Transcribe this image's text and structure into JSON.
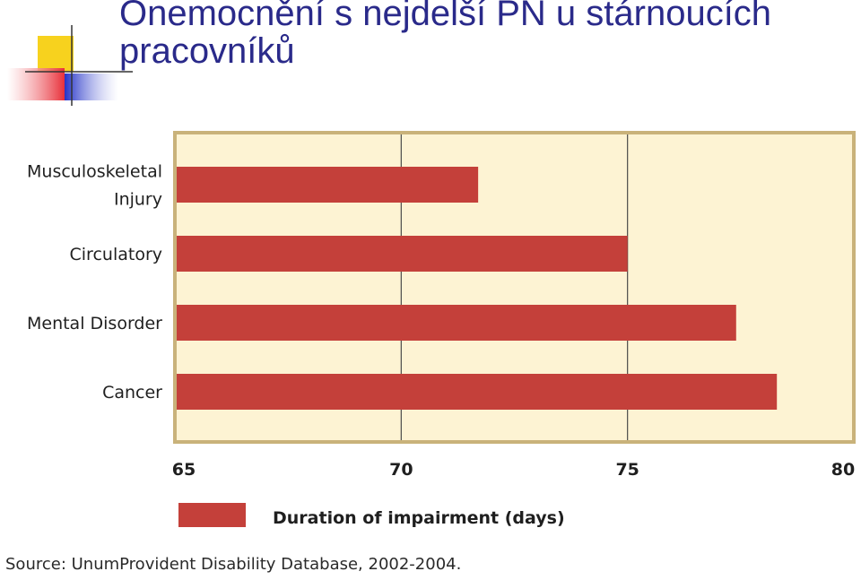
{
  "slide": {
    "title": "Onemocnění s nejdelší PN u stárnoucích pracovníků"
  },
  "colors": {
    "title": "#2a2a8a",
    "bar": "#c4403a",
    "plot_background": "#fdf3d3",
    "plot_border": "#c9b27a",
    "gridline": "#4a4a4a",
    "logo_yellow": "#f7d21e",
    "logo_red": "#e8303a",
    "logo_blue": "#2432c8"
  },
  "chart_data": {
    "type": "bar",
    "orientation": "horizontal",
    "categories": [
      "Musculoskeletal Injury",
      "Circulatory",
      "Mental Disorder",
      "Cancer"
    ],
    "values": [
      71.7,
      75.0,
      77.4,
      78.3
    ],
    "xlim": [
      65,
      80
    ],
    "xticks": [
      65,
      70,
      75,
      80
    ],
    "grid": "vertical",
    "legend": {
      "placement": "bottom",
      "entries": [
        "Duration of impairment (days)"
      ]
    },
    "source": "Source: UnumProvident Disability Database, 2002-2004."
  }
}
